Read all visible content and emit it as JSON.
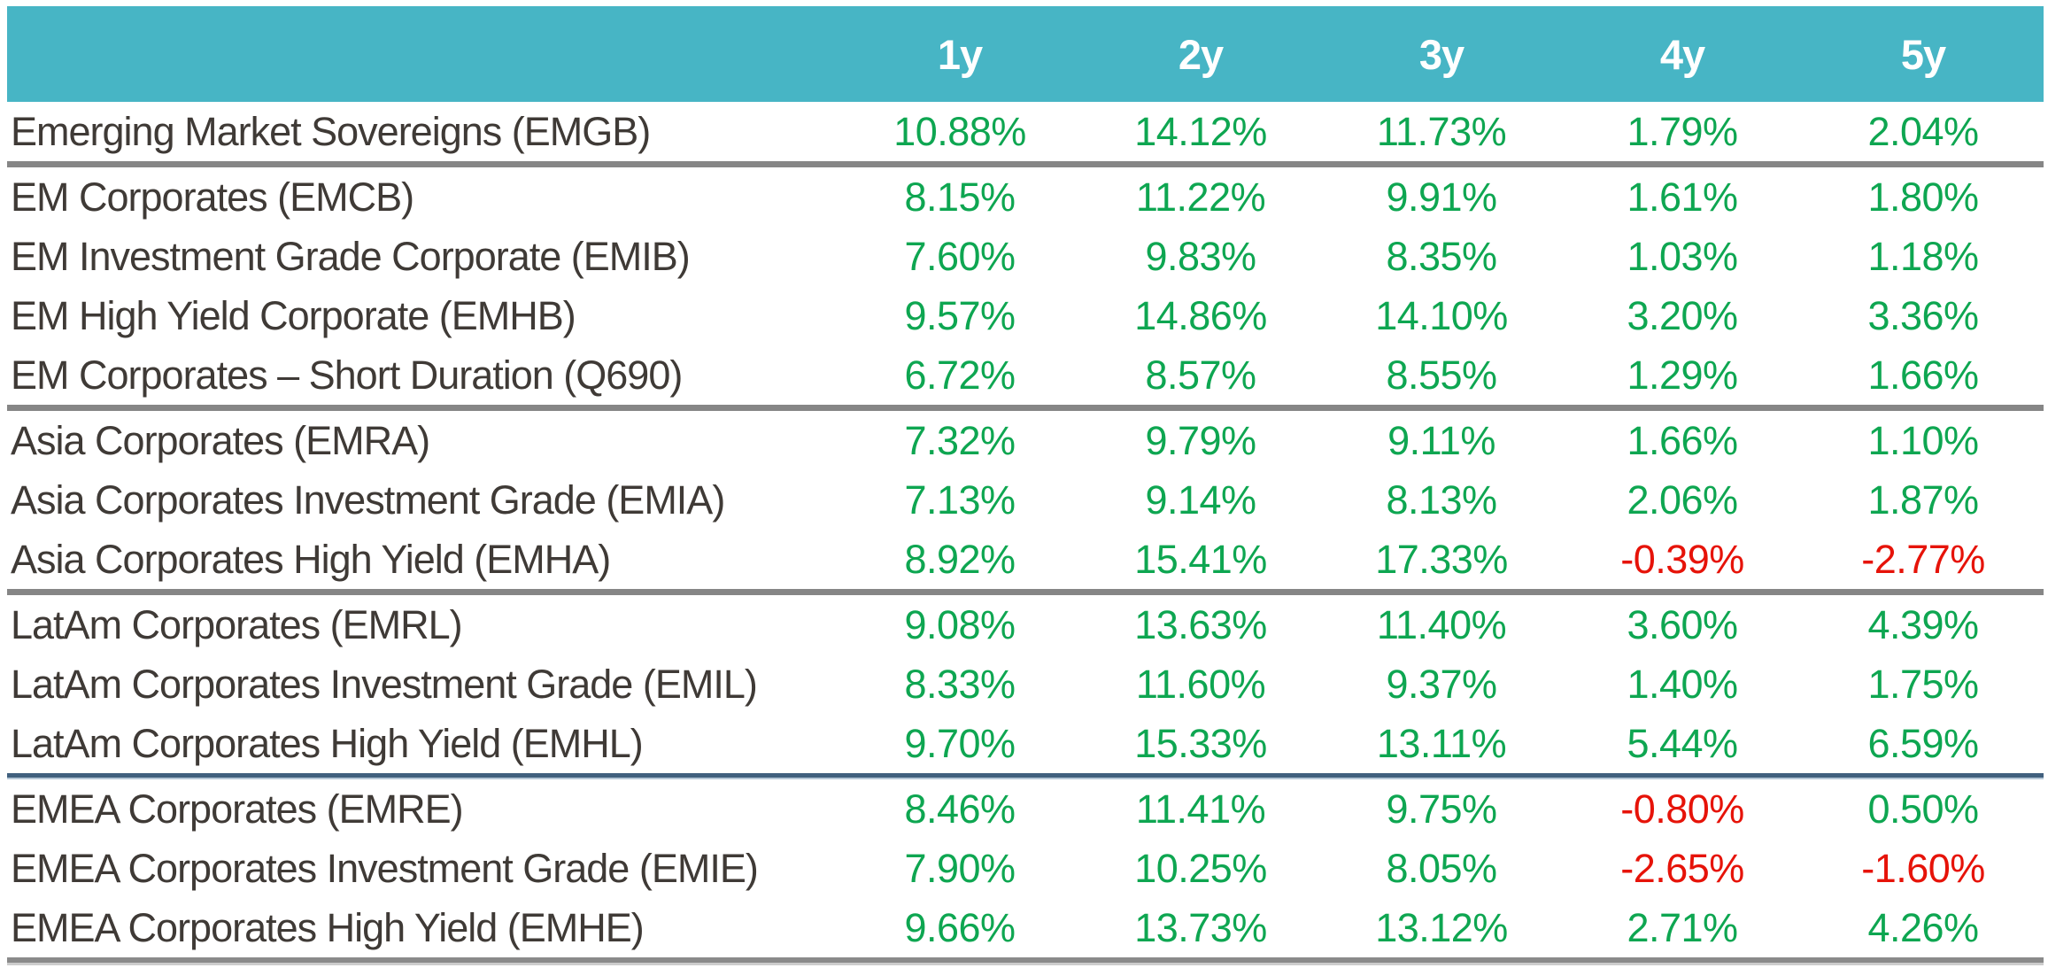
{
  "colors": {
    "header_bg": "#47b5c5",
    "header_text": "#ffffff",
    "positive": "#0ea651",
    "negative": "#e61309",
    "label_text": "#3f3a36",
    "divider_gray": "#868686",
    "divider_navy": "#41607e",
    "divider_navy_light": "#b5c7d7",
    "divider_bottom_light": "#cccccc"
  },
  "chart_data": {
    "type": "table",
    "columns": [
      "",
      "1y",
      "2y",
      "3y",
      "4y",
      "5y"
    ],
    "groups": [
      {
        "divider_after": "gray",
        "rows": [
          {
            "label": "Emerging Market Sovereigns (EMGB)",
            "values": [
              "10.88%",
              "14.12%",
              "11.73%",
              "1.79%",
              "2.04%"
            ]
          }
        ]
      },
      {
        "divider_after": "gray",
        "rows": [
          {
            "label": "EM Corporates (EMCB)",
            "values": [
              "8.15%",
              "11.22%",
              "9.91%",
              "1.61%",
              "1.80%"
            ]
          },
          {
            "label": "EM Investment Grade Corporate (EMIB)",
            "values": [
              "7.60%",
              "9.83%",
              "8.35%",
              "1.03%",
              "1.18%"
            ]
          },
          {
            "label": "EM High Yield Corporate (EMHB)",
            "values": [
              "9.57%",
              "14.86%",
              "14.10%",
              "3.20%",
              "3.36%"
            ]
          },
          {
            "label": "EM Corporates – Short Duration (Q690)",
            "values": [
              "6.72%",
              "8.57%",
              "8.55%",
              "1.29%",
              "1.66%"
            ]
          }
        ]
      },
      {
        "divider_after": "gray",
        "rows": [
          {
            "label": "Asia Corporates (EMRA)",
            "values": [
              "7.32%",
              "9.79%",
              "9.11%",
              "1.66%",
              "1.10%"
            ]
          },
          {
            "label": "Asia Corporates Investment Grade (EMIA)",
            "values": [
              "7.13%",
              "9.14%",
              "8.13%",
              "2.06%",
              "1.87%"
            ]
          },
          {
            "label": "Asia Corporates High Yield (EMHA)",
            "values": [
              "8.92%",
              "15.41%",
              "17.33%",
              "-0.39%",
              "-2.77%"
            ]
          }
        ]
      },
      {
        "divider_after": "navy",
        "rows": [
          {
            "label": "LatAm Corporates (EMRL)",
            "values": [
              "9.08%",
              "13.63%",
              "11.40%",
              "3.60%",
              "4.39%"
            ]
          },
          {
            "label": "LatAm Corporates Investment Grade (EMIL)",
            "values": [
              "8.33%",
              "11.60%",
              "9.37%",
              "1.40%",
              "1.75%"
            ]
          },
          {
            "label": "LatAm Corporates High Yield (EMHL)",
            "values": [
              "9.70%",
              "15.33%",
              "13.11%",
              "5.44%",
              "6.59%"
            ]
          }
        ]
      },
      {
        "divider_after": "bottom",
        "rows": [
          {
            "label": "EMEA Corporates (EMRE)",
            "values": [
              "8.46%",
              "11.41%",
              "9.75%",
              "-0.80%",
              "0.50%"
            ]
          },
          {
            "label": "EMEA Corporates Investment Grade (EMIE)",
            "values": [
              "7.90%",
              "10.25%",
              "8.05%",
              "-2.65%",
              "-1.60%"
            ]
          },
          {
            "label": "EMEA Corporates High Yield (EMHE)",
            "values": [
              "9.66%",
              "13.73%",
              "13.12%",
              "2.71%",
              "4.26%"
            ]
          }
        ]
      }
    ]
  }
}
